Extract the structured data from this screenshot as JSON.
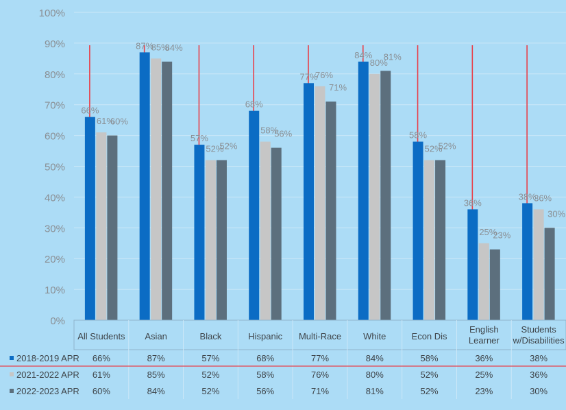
{
  "chart_data": {
    "type": "bar",
    "title": "",
    "xlabel": "",
    "ylabel": "",
    "ylim": [
      0,
      100
    ],
    "yticks": [
      "0%",
      "10%",
      "20%",
      "30%",
      "40%",
      "50%",
      "60%",
      "70%",
      "80%",
      "90%",
      "100%"
    ],
    "grid": true,
    "legend": "data-table",
    "categories": [
      [
        "All Students"
      ],
      [
        "Asian"
      ],
      [
        "Black"
      ],
      [
        "Hispanic"
      ],
      [
        "Multi-Race"
      ],
      [
        "White"
      ],
      [
        "Econ Dis"
      ],
      [
        "English",
        "Learner"
      ],
      [
        "Students",
        "w/Disabilities"
      ]
    ],
    "series": [
      {
        "name": "2018-2019 APR",
        "color": "#0b6cc4",
        "values": [
          66,
          87,
          57,
          68,
          77,
          84,
          58,
          36,
          38
        ],
        "labels": [
          "66%",
          "87%",
          "57%",
          "68%",
          "77%",
          "84%",
          "58%",
          "36%",
          "38%"
        ]
      },
      {
        "name": "2021-2022 APR",
        "color": "#c6c6c6",
        "values": [
          61,
          85,
          52,
          58,
          76,
          80,
          52,
          25,
          36
        ],
        "labels": [
          "61%",
          "85%",
          "52%",
          "58%",
          "76%",
          "80%",
          "52%",
          "25%",
          "36%"
        ]
      },
      {
        "name": "2022-2023 APR",
        "color": "#5c6f7d",
        "values": [
          60,
          84,
          52,
          56,
          71,
          81,
          52,
          23,
          30
        ],
        "labels": [
          "60%",
          "84%",
          "52%",
          "56%",
          "71%",
          "81%",
          "52%",
          "23%",
          "30%"
        ]
      }
    ],
    "reference_line_color": "#e8404a"
  }
}
